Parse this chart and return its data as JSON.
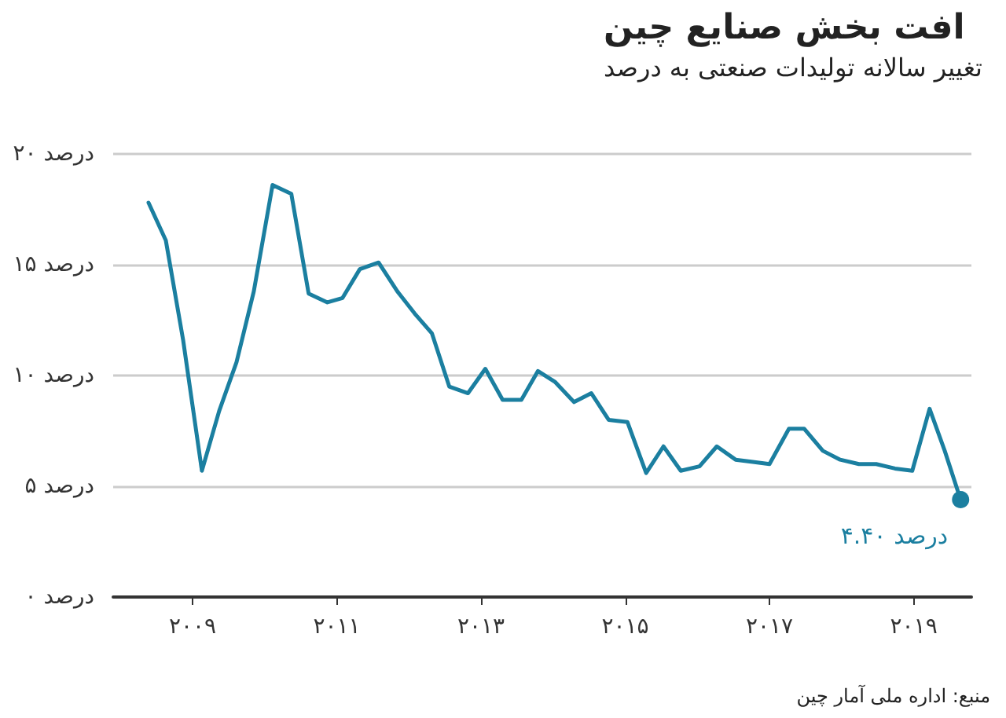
{
  "chart_data": {
    "type": "line",
    "title": "افت بخش صنایع چین",
    "subtitle": "تغییر سالانه تولیدات صنعتی به درصد",
    "annotations": [
      "منبع: اداره ملی آمار چین"
    ],
    "x": [
      2008.39,
      2008.63,
      2008.87,
      2009.13,
      2009.37,
      2009.61,
      2009.85,
      2010.11,
      2010.37,
      2010.61,
      2010.87,
      2011.08,
      2011.32,
      2011.58,
      2011.84,
      2012.08,
      2012.32,
      2012.56,
      2012.82,
      2013.06,
      2013.3,
      2013.56,
      2013.79,
      2014.03,
      2014.29,
      2014.53,
      2014.77,
      2015.03,
      2015.29,
      2015.53,
      2015.77,
      2016.03,
      2016.27,
      2016.53,
      2016.77,
      2017.0,
      2017.27,
      2017.48,
      2017.74,
      2017.98,
      2018.24,
      2018.48,
      2018.74,
      2018.98,
      2019.22,
      2019.43,
      2019.65
    ],
    "series": [
      {
        "color": "#1b7fa0",
        "values": [
          17.8,
          16.1,
          11.6,
          5.7,
          8.4,
          10.6,
          13.8,
          18.6,
          18.2,
          13.7,
          13.3,
          13.5,
          14.8,
          15.1,
          13.8,
          12.8,
          11.9,
          9.5,
          9.2,
          10.3,
          8.9,
          8.9,
          10.2,
          9.7,
          8.8,
          9.2,
          8.0,
          7.9,
          5.6,
          6.8,
          5.7,
          5.9,
          6.8,
          6.2,
          6.1,
          6.0,
          7.6,
          7.6,
          6.6,
          6.2,
          6.0,
          6.0,
          5.8,
          5.7,
          8.5,
          6.6,
          4.4
        ],
        "value_labels": [
          null,
          null,
          null,
          null,
          null,
          null,
          null,
          null,
          null,
          null,
          null,
          null,
          null,
          null,
          null,
          null,
          null,
          null,
          null,
          null,
          null,
          null,
          null,
          null,
          null,
          null,
          null,
          null,
          null,
          null,
          null,
          null,
          null,
          null,
          null,
          null,
          null,
          null,
          null,
          null,
          null,
          null,
          null,
          null,
          null,
          null,
          "۴.۴۰ درصد"
        ]
      }
    ],
    "xlim": [
      2007.9,
      2019.8
    ],
    "xticks": [
      {
        "value": 2009,
        "label": "۲۰۰۹"
      },
      {
        "value": 2011,
        "label": "۲۰۱۱"
      },
      {
        "value": 2013,
        "label": "۲۰۱۳"
      },
      {
        "value": 2015,
        "label": "۲۰۱۵"
      },
      {
        "value": 2017,
        "label": "۲۰۱۷"
      },
      {
        "value": 2019,
        "label": "۲۰۱۹"
      }
    ],
    "ylim": [
      0,
      20
    ],
    "yticks": [
      {
        "value": 0,
        "label": "۰ درصد"
      },
      {
        "value": 5,
        "label": "۵ درصد"
      },
      {
        "value": 10,
        "label": "۱۰ درصد"
      },
      {
        "value": 15,
        "label": "۱۵ درصد"
      },
      {
        "value": 20,
        "label": "۲۰ درصد"
      }
    ],
    "grid": "y",
    "marker": "none",
    "line_style": "solid"
  }
}
